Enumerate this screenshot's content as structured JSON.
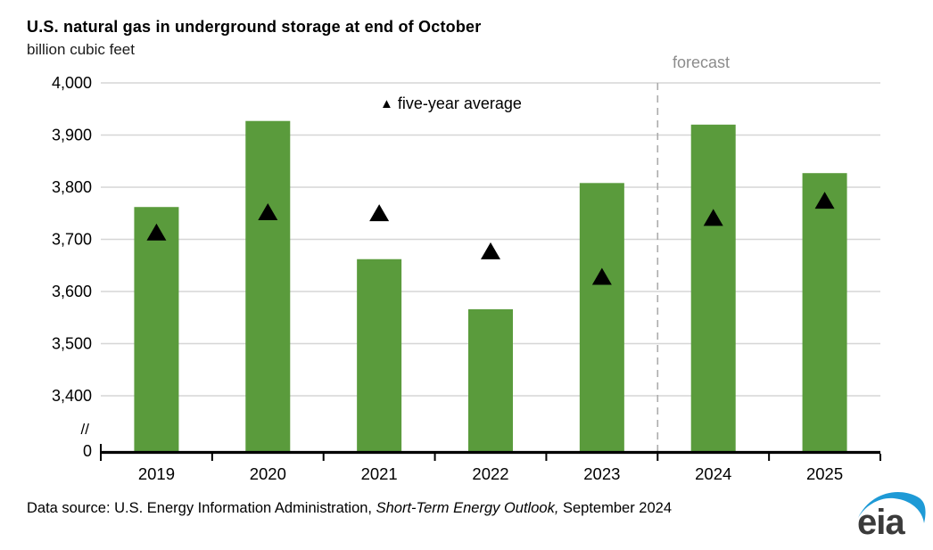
{
  "header": {
    "title": "U.S. natural gas in underground storage at end of October",
    "subtitle": "billion cubic feet"
  },
  "chart_data": {
    "type": "bar",
    "title": "U.S. natural gas in underground storage at end of October",
    "ylabel": "billion cubic feet",
    "categories": [
      "2019",
      "2020",
      "2021",
      "2022",
      "2023",
      "2024",
      "2025"
    ],
    "series": [
      {
        "name": "storage",
        "type": "bar",
        "values": [
          3762,
          3927,
          3662,
          3566,
          3808,
          3920,
          3827
        ]
      },
      {
        "name": "five-year average",
        "type": "triangle-marker",
        "values": [
          3714,
          3753,
          3751,
          3678,
          3629,
          3742,
          3775
        ]
      }
    ],
    "yticks": [
      3400,
      3500,
      3600,
      3700,
      3800,
      3900,
      4000
    ],
    "y_zero_label": "0",
    "axis_break_symbol": "//",
    "ylim_display": [
      3400,
      4000
    ],
    "grid": "horizontal",
    "forecast_divider_after_index": 4,
    "forecast_label": "forecast",
    "legend": {
      "marker": "▲",
      "label": "five-year average",
      "position": "top-center"
    },
    "colors": {
      "bar": "#5a9b3c",
      "marker": "#000000",
      "gridline": "#d6d6d6",
      "axis": "#000000",
      "forecast_line": "#ababab",
      "forecast_text": "#8c8c8c",
      "tick_label": "#000000"
    }
  },
  "footer": {
    "source_prefix": "Data source: U.S. Energy Information Administration, ",
    "source_italic": "Short-Term Energy Outlook,",
    "source_suffix": " September 2024",
    "logo_text": "eia",
    "logo_swoosh_color": "#1e9ad6",
    "logo_text_color": "#3b3b3b"
  }
}
